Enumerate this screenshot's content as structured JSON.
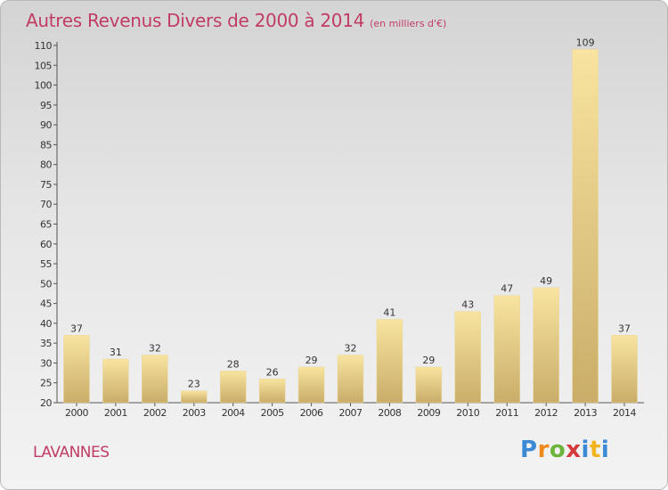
{
  "header": {
    "title": "Autres Revenus Divers de 2000 à 2014",
    "unit": "(en milliers d'€)"
  },
  "footer": {
    "commune": "LAVANNES",
    "brand": "Proxiti"
  },
  "colors": {
    "title": "#c03c64",
    "bar_light": "#f8e4a0",
    "bar_dark": "#c9ad69",
    "axis": "#555555"
  },
  "chart_data": {
    "type": "bar",
    "title": "Autres Revenus Divers de 2000 à 2014",
    "subtitle": "(en milliers d'€)",
    "xlabel": "",
    "ylabel": "",
    "categories": [
      "2000",
      "2001",
      "2002",
      "2003",
      "2004",
      "2005",
      "2006",
      "2007",
      "2008",
      "2009",
      "2010",
      "2011",
      "2012",
      "2013",
      "2014"
    ],
    "values": [
      37,
      31,
      32,
      23,
      28,
      26,
      29,
      32,
      41,
      29,
      43,
      47,
      49,
      109,
      37
    ],
    "ylim": [
      20,
      110
    ],
    "yticks": [
      20,
      25,
      30,
      35,
      40,
      45,
      50,
      55,
      60,
      65,
      70,
      75,
      80,
      85,
      90,
      95,
      100,
      105,
      110
    ],
    "grid": false,
    "data_labels": true
  }
}
